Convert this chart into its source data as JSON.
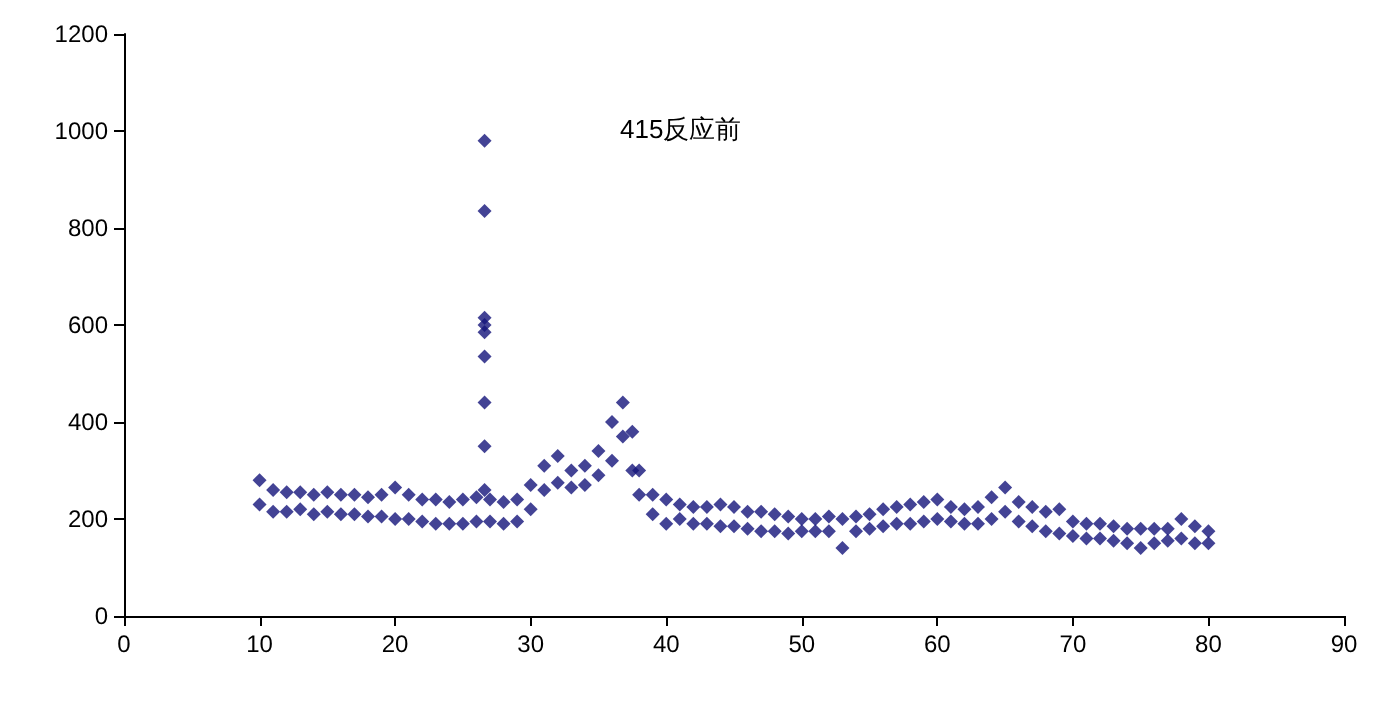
{
  "chart_data": {
    "type": "scatter",
    "annotations": [
      "415反应前"
    ],
    "x": [
      10,
      10,
      11,
      11,
      12,
      12,
      13,
      13,
      14,
      14,
      15,
      15,
      16,
      16,
      17,
      17,
      18,
      18,
      19,
      19,
      20,
      20,
      21,
      21,
      22,
      22,
      23,
      23,
      24,
      24,
      25,
      25,
      26,
      26,
      26.6,
      26.6,
      26.6,
      26.6,
      26.6,
      26.6,
      26.6,
      26.6,
      26.6,
      27,
      27,
      28,
      28,
      29,
      29,
      30,
      30,
      31,
      31,
      32,
      32,
      33,
      33,
      34,
      34,
      35,
      35,
      36,
      36,
      36.8,
      36.8,
      37.5,
      37.5,
      38,
      38,
      39,
      39,
      40,
      40,
      41,
      41,
      42,
      42,
      43,
      43,
      44,
      44,
      45,
      45,
      46,
      46,
      47,
      47,
      48,
      48,
      49,
      49,
      50,
      50,
      51,
      51,
      52,
      52,
      53,
      53,
      54,
      54,
      55,
      55,
      56,
      56,
      57,
      57,
      58,
      58,
      59,
      59,
      60,
      60,
      61,
      61,
      62,
      62,
      63,
      63,
      64,
      64,
      65,
      65,
      66,
      66,
      67,
      67,
      68,
      68,
      69,
      69,
      70,
      70,
      71,
      71,
      72,
      72,
      73,
      73,
      74,
      74,
      75,
      75,
      76,
      76,
      77,
      77,
      78,
      78,
      79,
      79,
      80,
      80
    ],
    "series": [
      {
        "color": "#14147a",
        "values": [
          280,
          230,
          260,
          215,
          255,
          215,
          255,
          220,
          250,
          210,
          255,
          215,
          250,
          210,
          250,
          210,
          245,
          205,
          250,
          205,
          265,
          200,
          250,
          200,
          240,
          195,
          240,
          190,
          235,
          190,
          240,
          190,
          245,
          195,
          980,
          835,
          615,
          600,
          585,
          535,
          440,
          350,
          260,
          240,
          195,
          235,
          190,
          240,
          195,
          270,
          220,
          310,
          260,
          330,
          275,
          300,
          265,
          310,
          270,
          340,
          290,
          400,
          320,
          440,
          370,
          380,
          300,
          300,
          250,
          250,
          210,
          240,
          190,
          230,
          200,
          225,
          190,
          225,
          190,
          230,
          185,
          225,
          185,
          215,
          180,
          215,
          175,
          210,
          175,
          205,
          170,
          200,
          175,
          200,
          175,
          205,
          175,
          200,
          140,
          205,
          175,
          210,
          180,
          220,
          185,
          225,
          190,
          230,
          190,
          235,
          195,
          240,
          200,
          225,
          195,
          220,
          190,
          225,
          190,
          245,
          200,
          265,
          215,
          235,
          195,
          225,
          185,
          215,
          175,
          220,
          170,
          195,
          165,
          190,
          160,
          190,
          160,
          185,
          155,
          180,
          150,
          180,
          140,
          180,
          150,
          180,
          155,
          200,
          160,
          185,
          150,
          175,
          150
        ]
      }
    ],
    "xlim": [
      0,
      90
    ],
    "xticks": [
      0,
      10,
      20,
      30,
      40,
      50,
      60,
      70,
      80,
      90
    ],
    "ylim": [
      0,
      1200
    ],
    "yticks": [
      0,
      200,
      400,
      600,
      800,
      1000,
      1200
    ],
    "marker": "diamond"
  }
}
